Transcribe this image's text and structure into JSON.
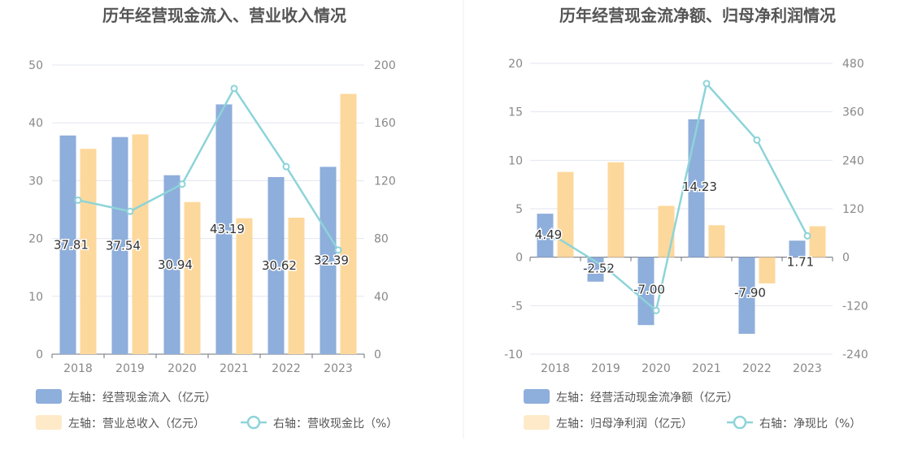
{
  "chart_data": [
    {
      "type": "bar",
      "title": "历年经营现金流入、营业收入情况",
      "categories": [
        "2018",
        "2019",
        "2020",
        "2021",
        "2022",
        "2023"
      ],
      "y_left": {
        "min": 0,
        "max": 50,
        "ticks": [
          "0",
          "10",
          "20",
          "30",
          "40",
          "50"
        ]
      },
      "y_right": {
        "min": 0,
        "max": 200,
        "ticks": [
          "0",
          "40",
          "80",
          "120",
          "160",
          "200"
        ]
      },
      "series": [
        {
          "name": "左轴：经营现金流入（亿元）",
          "kind": "bar",
          "axis": "left",
          "color": "#8eaedb",
          "values": [
            37.81,
            37.54,
            30.94,
            43.19,
            30.62,
            32.39
          ],
          "labels": [
            "37.81",
            "37.54",
            "30.94",
            "43.19",
            "30.62",
            "32.39"
          ]
        },
        {
          "name": "左轴：营业总收入（亿元）",
          "kind": "bar",
          "axis": "left",
          "color": "#fdd89c",
          "values": [
            35.5,
            38.0,
            26.3,
            23.5,
            23.6,
            45.0
          ]
        },
        {
          "name": "右轴：营收现金比（%）",
          "kind": "line",
          "axis": "right",
          "color": "#8dd4d9",
          "values": [
            106.5,
            98.8,
            117.6,
            183.8,
            129.7,
            72.0
          ]
        }
      ],
      "legend": {
        "row1": [
          "左轴：经营现金流入（亿元）"
        ],
        "row2": [
          "左轴：营业总收入（亿元）",
          "右轴：营收现金比（%）"
        ]
      }
    },
    {
      "type": "bar",
      "title": "历年经营现金流净额、归母净利润情况",
      "categories": [
        "2018",
        "2019",
        "2020",
        "2021",
        "2022",
        "2023"
      ],
      "y_left": {
        "min": -10,
        "max": 20,
        "ticks": [
          "-10",
          "-5",
          "0",
          "5",
          "10",
          "15",
          "20"
        ]
      },
      "y_right": {
        "min": -240,
        "max": 480,
        "ticks": [
          "-240",
          "-120",
          "0",
          "120",
          "240",
          "360",
          "480"
        ]
      },
      "series": [
        {
          "name": "左轴：经营活动现金流净额（亿元）",
          "kind": "bar",
          "axis": "left",
          "color": "#8eaedb",
          "values": [
            4.49,
            -2.52,
            -7.0,
            14.23,
            -7.9,
            1.71
          ],
          "labels": [
            "4.49",
            "-2.52",
            "-7.00",
            "14.23",
            "-7.90",
            "1.71"
          ]
        },
        {
          "name": "左轴：归母净利润（亿元）",
          "kind": "bar",
          "axis": "left",
          "color": "#fdd89c",
          "values": [
            8.8,
            9.8,
            5.3,
            3.3,
            -2.7,
            3.2
          ]
        },
        {
          "name": "右轴：净现比（%）",
          "kind": "line",
          "axis": "right",
          "color": "#8dd4d9",
          "values": [
            51,
            -26,
            -132,
            430,
            290,
            53
          ]
        }
      ],
      "legend": {
        "row1": [
          "左轴：经营活动现金流净额（亿元）"
        ],
        "row2": [
          "左轴：归母净利润（亿元）",
          "右轴：净现比（%）"
        ]
      }
    }
  ]
}
